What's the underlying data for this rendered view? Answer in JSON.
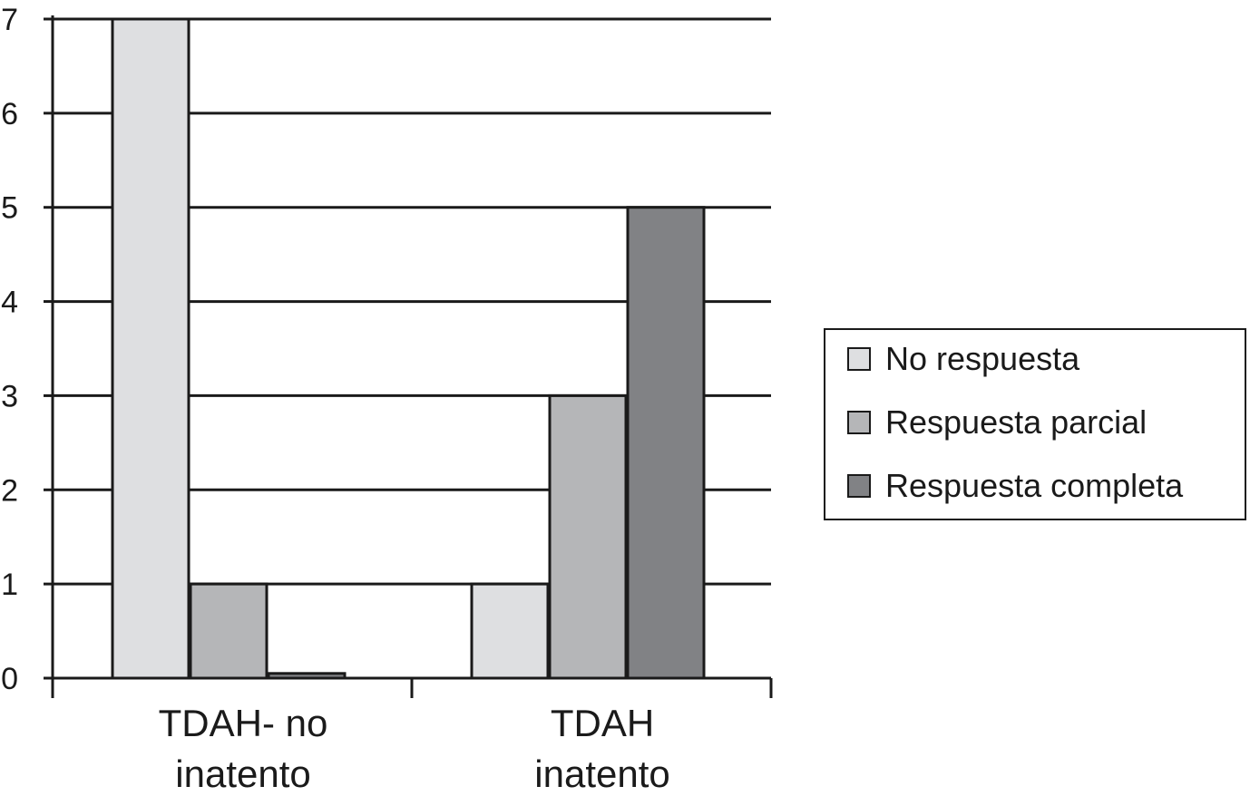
{
  "chart_data": {
    "type": "bar",
    "categories": [
      [
        "TDAH- no",
        "inatento"
      ],
      [
        "TDAH",
        "inatento"
      ]
    ],
    "series": [
      {
        "name": "No respuesta",
        "values": [
          7,
          1
        ],
        "color": "#dedfe1"
      },
      {
        "name": "Respuesta parcial",
        "values": [
          1,
          3
        ],
        "color": "#b5b6b8"
      },
      {
        "name": "Respuesta completa",
        "values": [
          0.05,
          5
        ],
        "color": "#818285"
      }
    ],
    "ylim": [
      0,
      7
    ],
    "yticks": [
      "0",
      "1",
      "2",
      "3",
      "4",
      "5",
      "6",
      "7"
    ],
    "grid": true,
    "legend_position": "right"
  }
}
